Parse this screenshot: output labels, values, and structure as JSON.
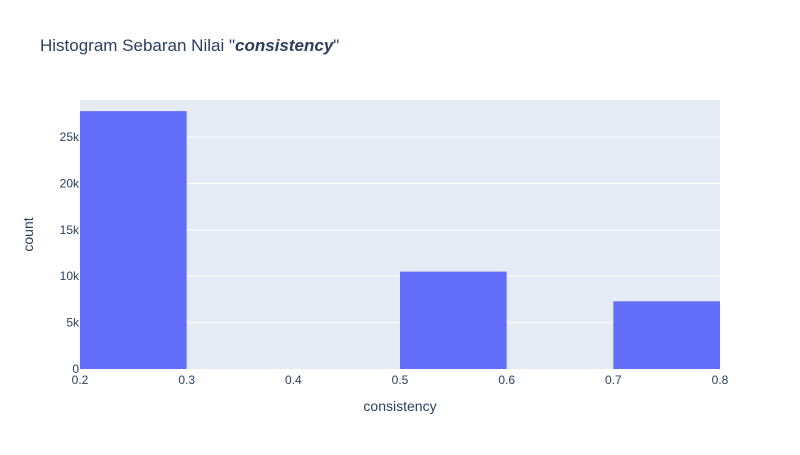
{
  "chart_data": {
    "type": "bar",
    "title_prefix": "Histogram Sebaran Nilai \"",
    "title_emph": "consistency",
    "title_suffix": "\"",
    "xlabel": "consistency",
    "ylabel": "count",
    "xlim": [
      0.2,
      0.8
    ],
    "ylim": [
      0,
      29000
    ],
    "bins": [
      {
        "x0": 0.2,
        "x1": 0.3,
        "count": 27800
      },
      {
        "x0": 0.3,
        "x1": 0.4,
        "count": 0
      },
      {
        "x0": 0.4,
        "x1": 0.5,
        "count": 0
      },
      {
        "x0": 0.5,
        "x1": 0.6,
        "count": 10500
      },
      {
        "x0": 0.6,
        "x1": 0.7,
        "count": 0
      },
      {
        "x0": 0.7,
        "x1": 0.8,
        "count": 7300
      }
    ],
    "xticks": [
      {
        "value": 0.2,
        "label": "0.2"
      },
      {
        "value": 0.3,
        "label": "0.3"
      },
      {
        "value": 0.4,
        "label": "0.4"
      },
      {
        "value": 0.5,
        "label": "0.5"
      },
      {
        "value": 0.6,
        "label": "0.6"
      },
      {
        "value": 0.7,
        "label": "0.7"
      },
      {
        "value": 0.8,
        "label": "0.8"
      }
    ],
    "yticks": [
      {
        "value": 0,
        "label": "0"
      },
      {
        "value": 5000,
        "label": "5k"
      },
      {
        "value": 10000,
        "label": "10k"
      },
      {
        "value": 15000,
        "label": "15k"
      },
      {
        "value": 20000,
        "label": "20k"
      },
      {
        "value": 25000,
        "label": "25k"
      }
    ],
    "grid": true,
    "colors": {
      "bar": "#636efa",
      "plot_bg": "#e5ecf6",
      "grid": "#ffffff",
      "text": "#2a3f5f",
      "tick_text": "#2a3f5f"
    }
  }
}
